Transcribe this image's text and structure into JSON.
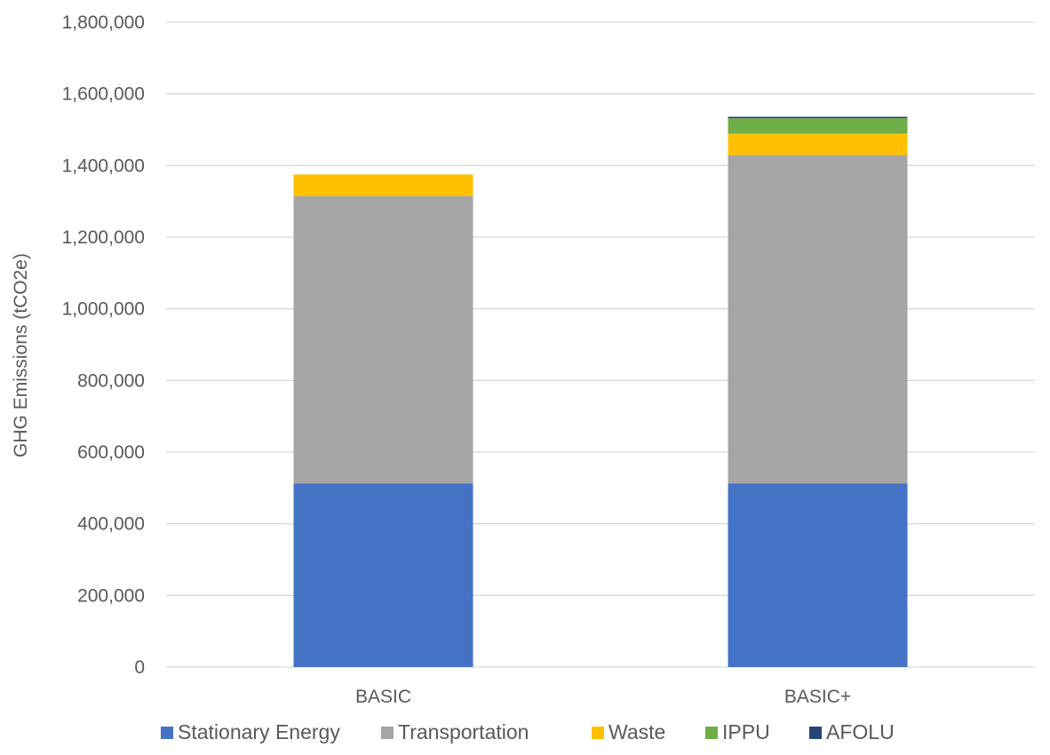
{
  "chart_data": {
    "type": "bar",
    "stacked": true,
    "title": "",
    "xlabel": "",
    "ylabel": "GHG Emissions (tCO2e)",
    "ylim": [
      0,
      1800000
    ],
    "y_ticks": [
      "0",
      "200,000",
      "400,000",
      "600,000",
      "800,000",
      "1,000,000",
      "1,200,000",
      "1,400,000",
      "1,600,000",
      "1,800,000"
    ],
    "y_tick_values": [
      0,
      200000,
      400000,
      600000,
      800000,
      1000000,
      1200000,
      1400000,
      1600000,
      1800000
    ],
    "categories": [
      "BASIC",
      "BASIC+"
    ],
    "series": [
      {
        "name": "Stationary Energy",
        "color": "#4472C4",
        "values": [
          512000,
          512000
        ]
      },
      {
        "name": "Transportation",
        "color": "#A5A5A5",
        "values": [
          803000,
          917000
        ]
      },
      {
        "name": "Waste",
        "color": "#FFC000",
        "values": [
          60000,
          60000
        ]
      },
      {
        "name": "IPPU",
        "color": "#70AD47",
        "values": [
          0,
          43000
        ]
      },
      {
        "name": "AFOLU",
        "color": "#264478",
        "values": [
          0,
          4000
        ]
      }
    ],
    "grid": true,
    "legend_position": "bottom"
  }
}
